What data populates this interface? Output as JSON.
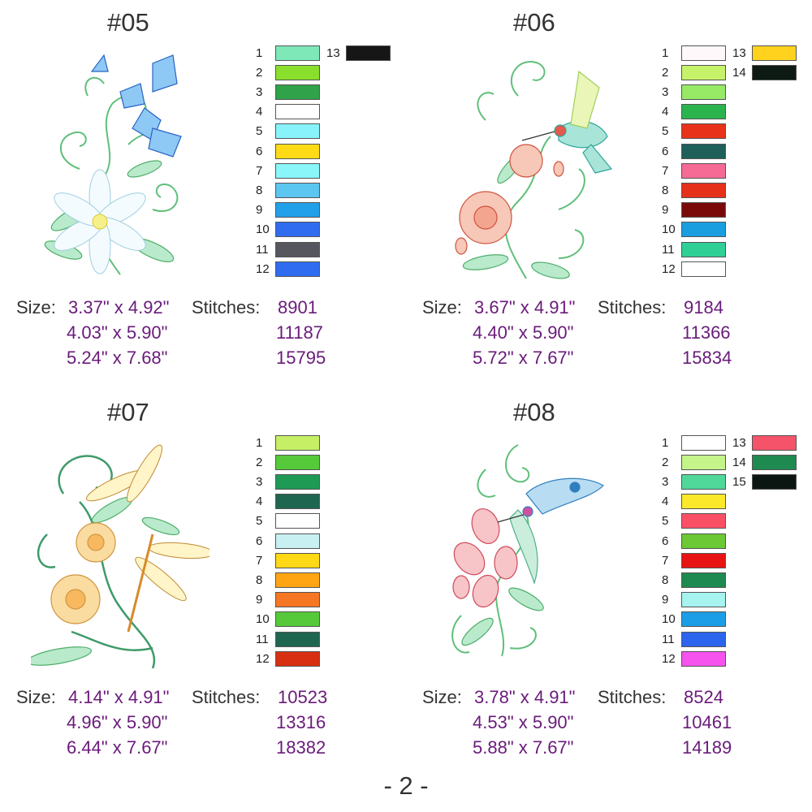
{
  "designs": [
    {
      "id": "#05",
      "colors_main": [
        {
          "n": "1",
          "c": "#7ee8b8"
        },
        {
          "n": "2",
          "c": "#8adf2c"
        },
        {
          "n": "3",
          "c": "#2fa24a"
        },
        {
          "n": "4",
          "c": "#ffffff"
        },
        {
          "n": "5",
          "c": "#88f3fb"
        },
        {
          "n": "6",
          "c": "#ffdb17"
        },
        {
          "n": "7",
          "c": "#8af6fa"
        },
        {
          "n": "8",
          "c": "#5cc5f0"
        },
        {
          "n": "9",
          "c": "#22a0ea"
        },
        {
          "n": "10",
          "c": "#2f6cf0"
        },
        {
          "n": "11",
          "c": "#55565e"
        },
        {
          "n": "12",
          "c": "#2f6cf0"
        }
      ],
      "colors_extra": [
        {
          "n": "13",
          "c": "#161616"
        }
      ],
      "size_label": "Size:",
      "stitch_label": "Stitches:",
      "sizes": [
        "3.37\" x 4.92\"",
        "4.03\" x 5.90\"",
        "5.24\" x 7.68\""
      ],
      "stitches": [
        "8901",
        "11187",
        "15795"
      ]
    },
    {
      "id": "#06",
      "colors_main": [
        {
          "n": "1",
          "c": "#fff8fb"
        },
        {
          "n": "2",
          "c": "#c6f26a"
        },
        {
          "n": "3",
          "c": "#96ea66"
        },
        {
          "n": "4",
          "c": "#2bb34e"
        },
        {
          "n": "5",
          "c": "#e8321a"
        },
        {
          "n": "6",
          "c": "#1e5f5a"
        },
        {
          "n": "7",
          "c": "#f56b95"
        },
        {
          "n": "8",
          "c": "#e5311a"
        },
        {
          "n": "9",
          "c": "#7a0a0a"
        },
        {
          "n": "10",
          "c": "#1a9ee0"
        },
        {
          "n": "11",
          "c": "#2fcf95"
        },
        {
          "n": "12",
          "c": "#ffffff"
        }
      ],
      "colors_extra": [
        {
          "n": "13",
          "c": "#ffd21e"
        },
        {
          "n": "14",
          "c": "#0e1a14"
        }
      ],
      "size_label": "Size:",
      "stitch_label": "Stitches:",
      "sizes": [
        "3.67\" x 4.91\"",
        "4.40\" x 5.90\"",
        "5.72\" x 7.67\""
      ],
      "stitches": [
        "9184",
        "11366",
        "15834"
      ]
    },
    {
      "id": "#07",
      "colors_main": [
        {
          "n": "1",
          "c": "#c6ef66"
        },
        {
          "n": "2",
          "c": "#55c93a"
        },
        {
          "n": "3",
          "c": "#1e9a55"
        },
        {
          "n": "4",
          "c": "#1f6650"
        },
        {
          "n": "5",
          "c": "#ffffff"
        },
        {
          "n": "6",
          "c": "#c8f0f2"
        },
        {
          "n": "7",
          "c": "#ffd816"
        },
        {
          "n": "8",
          "c": "#ffa514"
        },
        {
          "n": "9",
          "c": "#f57623"
        },
        {
          "n": "10",
          "c": "#55c93a"
        },
        {
          "n": "11",
          "c": "#1f6650"
        },
        {
          "n": "12",
          "c": "#d82f12"
        }
      ],
      "colors_extra": [],
      "size_label": "Size:",
      "stitch_label": "Stitches:",
      "sizes": [
        "4.14\" x 4.91\"",
        "4.96\" x 5.90\"",
        "6.44\" x 7.67\""
      ],
      "stitches": [
        "10523",
        "13316",
        "18382"
      ]
    },
    {
      "id": "#08",
      "colors_main": [
        {
          "n": "1",
          "c": "#ffffff"
        },
        {
          "n": "2",
          "c": "#c4f48a"
        },
        {
          "n": "3",
          "c": "#50d89a"
        },
        {
          "n": "4",
          "c": "#fbe82a"
        },
        {
          "n": "5",
          "c": "#fa5066"
        },
        {
          "n": "6",
          "c": "#6cc834"
        },
        {
          "n": "7",
          "c": "#e81414"
        },
        {
          "n": "8",
          "c": "#1e8a50"
        },
        {
          "n": "9",
          "c": "#a6f3f0"
        },
        {
          "n": "10",
          "c": "#1c9ee6"
        },
        {
          "n": "11",
          "c": "#2c64ee"
        },
        {
          "n": "12",
          "c": "#f552ee"
        }
      ],
      "colors_extra": [
        {
          "n": "13",
          "c": "#f5536a"
        },
        {
          "n": "14",
          "c": "#1e8a50"
        },
        {
          "n": "15",
          "c": "#0b1612"
        }
      ],
      "size_label": "Size:",
      "stitch_label": "Stitches:",
      "sizes": [
        "3.78\" x 4.91\"",
        "4.53\" x 5.90\"",
        "5.88\" x 7.67\""
      ],
      "stitches": [
        "8524",
        "10461",
        "14189"
      ]
    }
  ],
  "page_number": "- 2 -"
}
